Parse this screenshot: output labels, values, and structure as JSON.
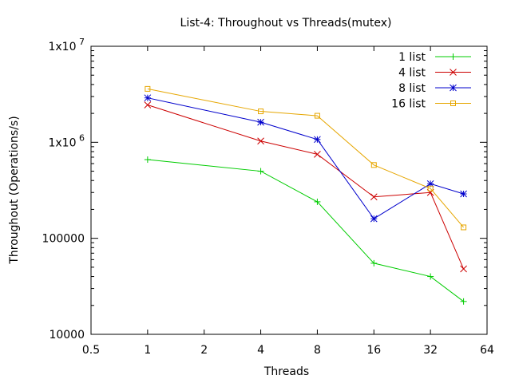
{
  "chart_data": {
    "type": "line",
    "title": "List-4: Throughout vs Threads(mutex)",
    "xlabel": "Threads",
    "ylabel": "Throughout (Operations/s)",
    "x_scale": "log2",
    "y_scale": "log10",
    "xlim": [
      0.5,
      64
    ],
    "ylim": [
      10000,
      10000000
    ],
    "x_ticks": [
      0.5,
      1,
      2,
      4,
      8,
      16,
      32,
      64
    ],
    "x_tick_labels": [
      "0.5",
      "1",
      "2",
      "4",
      "8",
      "16",
      "32",
      "64"
    ],
    "y_ticks": [
      10000,
      100000,
      1000000,
      10000000
    ],
    "y_tick_labels": [
      {
        "base": "10000",
        "exp": ""
      },
      {
        "base": "100000",
        "exp": ""
      },
      {
        "base": "1x10",
        "exp": "6"
      },
      {
        "base": "1x10",
        "exp": "7"
      }
    ],
    "grid": false,
    "legend_position": "top-right",
    "x": [
      1,
      4,
      8,
      16,
      32,
      48
    ],
    "series": [
      {
        "name": "1 list",
        "color": "#00cc00",
        "marker": "plus",
        "values": [
          660000,
          500000,
          240000,
          55000,
          40000,
          22000
        ]
      },
      {
        "name": "4 list",
        "color": "#cc0000",
        "marker": "cross",
        "values": [
          2450000,
          1030000,
          750000,
          270000,
          300000,
          48000
        ]
      },
      {
        "name": "8 list",
        "color": "#0000cc",
        "marker": "star",
        "values": [
          2900000,
          1620000,
          1070000,
          160000,
          370000,
          290000
        ]
      },
      {
        "name": "16 list",
        "color": "#e6a600",
        "marker": "square",
        "values": [
          3600000,
          2100000,
          1890000,
          580000,
          330000,
          130000
        ]
      }
    ]
  }
}
